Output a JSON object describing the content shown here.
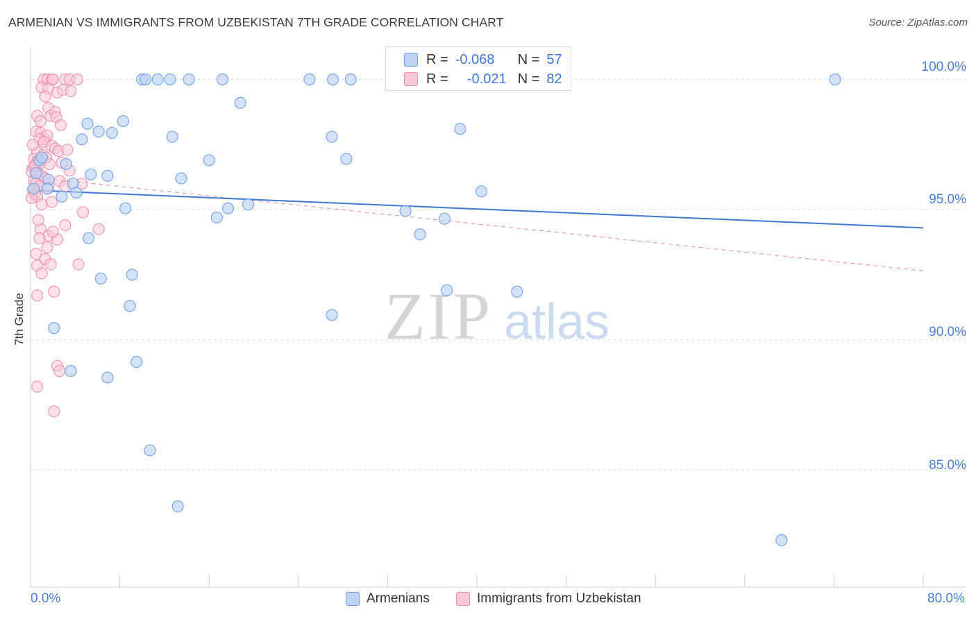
{
  "title": "ARMENIAN VS IMMIGRANTS FROM UZBEKISTAN 7TH GRADE CORRELATION CHART",
  "source": "Source: ZipAtlas.com",
  "watermark": {
    "zip": "ZIP",
    "atlas": "atlas"
  },
  "legend": {
    "series": [
      {
        "r_label": "R =",
        "r_value": "-0.068",
        "n_label": "N =",
        "n_value": "57"
      },
      {
        "r_label": "R =",
        "r_value": "-0.021",
        "n_label": "N =",
        "n_value": "82"
      }
    ]
  },
  "bottom_legend": {
    "armenians": "Armenians",
    "uzbekistan": "Immigrants from Uzbekistan"
  },
  "colors": {
    "blue_fill": "#bcd3f5",
    "blue_stroke": "#6d9ee8",
    "blue_line": "#3f76d4",
    "pink_fill": "#f9c8d6",
    "pink_stroke": "#ec8aab",
    "pink_line": "#e0708f",
    "axis_text": "#4a7fd4"
  },
  "chart_data": {
    "type": "scatter",
    "title": "ARMENIAN VS IMMIGRANTS FROM UZBEKISTAN 7TH GRADE CORRELATION CHART",
    "xlabel": "",
    "ylabel": "7th Grade",
    "xlim": [
      0,
      80
    ],
    "ylim": [
      80.5,
      101.4
    ],
    "x_tick_labels": {
      "min": "0.0%",
      "max": "80.0%"
    },
    "y_ticks": [
      {
        "value": 100,
        "label": "100.0%"
      },
      {
        "value": 95,
        "label": "95.0%"
      },
      {
        "value": 90,
        "label": "90.0%"
      },
      {
        "value": 85,
        "label": "85.0%"
      }
    ],
    "grid": true,
    "legend_position": "top-center",
    "series": [
      {
        "name": "Armenians",
        "color": "#6d9ee8",
        "r": -0.068,
        "n": 57,
        "trend": {
          "x": [
            0,
            80
          ],
          "y": [
            95.75,
            94.3
          ]
        },
        "points": [
          [
            10.0,
            100.0
          ],
          [
            10.3,
            100.0
          ],
          [
            11.4,
            100.0
          ],
          [
            12.5,
            100.0
          ],
          [
            14.2,
            100.0
          ],
          [
            17.2,
            100.0
          ],
          [
            25.0,
            100.0
          ],
          [
            27.1,
            100.0
          ],
          [
            28.7,
            100.0
          ],
          [
            32.8,
            100.0
          ],
          [
            72.1,
            100.0
          ],
          [
            18.8,
            99.1
          ],
          [
            5.1,
            98.3
          ],
          [
            8.3,
            98.4
          ],
          [
            6.1,
            98.0
          ],
          [
            7.3,
            97.95
          ],
          [
            4.6,
            97.7
          ],
          [
            12.7,
            97.8
          ],
          [
            27.0,
            97.8
          ],
          [
            38.5,
            98.1
          ],
          [
            16.0,
            96.9
          ],
          [
            28.3,
            96.95
          ],
          [
            3.2,
            96.75
          ],
          [
            0.5,
            96.4
          ],
          [
            5.4,
            96.35
          ],
          [
            6.9,
            96.3
          ],
          [
            13.5,
            96.2
          ],
          [
            1.6,
            96.15
          ],
          [
            0.3,
            95.8
          ],
          [
            1.5,
            95.8
          ],
          [
            3.8,
            96.0
          ],
          [
            4.1,
            95.65
          ],
          [
            2.8,
            95.5
          ],
          [
            40.4,
            95.7
          ],
          [
            8.5,
            95.05
          ],
          [
            17.7,
            95.05
          ],
          [
            19.5,
            95.2
          ],
          [
            33.6,
            94.95
          ],
          [
            16.7,
            94.7
          ],
          [
            37.1,
            94.65
          ],
          [
            5.2,
            93.9
          ],
          [
            34.9,
            94.05
          ],
          [
            6.3,
            92.35
          ],
          [
            9.1,
            92.5
          ],
          [
            37.3,
            91.9
          ],
          [
            43.6,
            91.85
          ],
          [
            8.9,
            91.3
          ],
          [
            27.0,
            90.95
          ],
          [
            2.1,
            90.45
          ],
          [
            9.5,
            89.15
          ],
          [
            3.6,
            88.8
          ],
          [
            6.9,
            88.55
          ],
          [
            10.7,
            85.75
          ],
          [
            13.2,
            83.6
          ],
          [
            67.3,
            82.3
          ],
          [
            0.8,
            96.9
          ],
          [
            1.0,
            97.0
          ]
        ]
      },
      {
        "name": "Immigrants from Uzbekistan",
        "color": "#ec8aab",
        "r": -0.021,
        "n": 82,
        "trend": {
          "x": [
            0,
            80
          ],
          "y": [
            96.25,
            92.65
          ]
        },
        "points": [
          [
            1.2,
            100.0
          ],
          [
            1.5,
            100.0
          ],
          [
            1.9,
            100.0
          ],
          [
            3.1,
            100.0
          ],
          [
            3.5,
            100.0
          ],
          [
            4.2,
            100.0
          ],
          [
            2.0,
            100.0
          ],
          [
            1.0,
            99.7
          ],
          [
            1.6,
            99.65
          ],
          [
            2.4,
            99.5
          ],
          [
            2.9,
            99.6
          ],
          [
            3.6,
            99.55
          ],
          [
            1.3,
            99.35
          ],
          [
            1.6,
            98.9
          ],
          [
            1.8,
            98.6
          ],
          [
            2.2,
            98.75
          ],
          [
            2.3,
            98.55
          ],
          [
            0.6,
            98.6
          ],
          [
            2.7,
            98.25
          ],
          [
            0.9,
            98.4
          ],
          [
            0.5,
            98.0
          ],
          [
            0.9,
            97.95
          ],
          [
            1.3,
            97.7
          ],
          [
            1.5,
            97.85
          ],
          [
            0.8,
            97.7
          ],
          [
            1.2,
            97.6
          ],
          [
            1.9,
            97.45
          ],
          [
            2.2,
            97.35
          ],
          [
            2.5,
            97.25
          ],
          [
            0.6,
            97.2
          ],
          [
            1.1,
            97.1
          ],
          [
            1.4,
            97.0
          ],
          [
            0.3,
            96.95
          ],
          [
            0.6,
            96.85
          ],
          [
            0.9,
            96.8
          ],
          [
            1.7,
            96.75
          ],
          [
            2.8,
            96.8
          ],
          [
            3.5,
            96.5
          ],
          [
            0.2,
            96.6
          ],
          [
            0.4,
            96.5
          ],
          [
            0.7,
            96.4
          ],
          [
            1.0,
            96.3
          ],
          [
            1.3,
            96.2
          ],
          [
            0.1,
            96.45
          ],
          [
            0.3,
            96.1
          ],
          [
            0.5,
            96.0
          ],
          [
            0.8,
            95.9
          ],
          [
            1.6,
            95.85
          ],
          [
            2.6,
            96.1
          ],
          [
            3.1,
            95.9
          ],
          [
            4.6,
            96.0
          ],
          [
            0.2,
            95.75
          ],
          [
            0.4,
            95.6
          ],
          [
            0.6,
            95.5
          ],
          [
            0.1,
            95.45
          ],
          [
            1.0,
            95.2
          ],
          [
            4.7,
            94.9
          ],
          [
            0.9,
            94.25
          ],
          [
            3.1,
            94.4
          ],
          [
            6.1,
            94.25
          ],
          [
            1.6,
            94.0
          ],
          [
            0.8,
            93.9
          ],
          [
            2.4,
            93.85
          ],
          [
            0.5,
            93.3
          ],
          [
            1.3,
            93.1
          ],
          [
            0.6,
            92.85
          ],
          [
            1.8,
            92.9
          ],
          [
            4.3,
            92.9
          ],
          [
            1.0,
            92.55
          ],
          [
            0.6,
            91.7
          ],
          [
            2.1,
            91.85
          ],
          [
            2.4,
            89.0
          ],
          [
            2.6,
            88.8
          ],
          [
            0.6,
            88.2
          ],
          [
            2.1,
            87.25
          ],
          [
            0.2,
            97.5
          ],
          [
            0.4,
            96.7
          ],
          [
            1.9,
            95.3
          ],
          [
            0.7,
            94.6
          ],
          [
            1.5,
            93.55
          ],
          [
            2.0,
            94.15
          ],
          [
            3.3,
            97.3
          ]
        ]
      }
    ]
  }
}
